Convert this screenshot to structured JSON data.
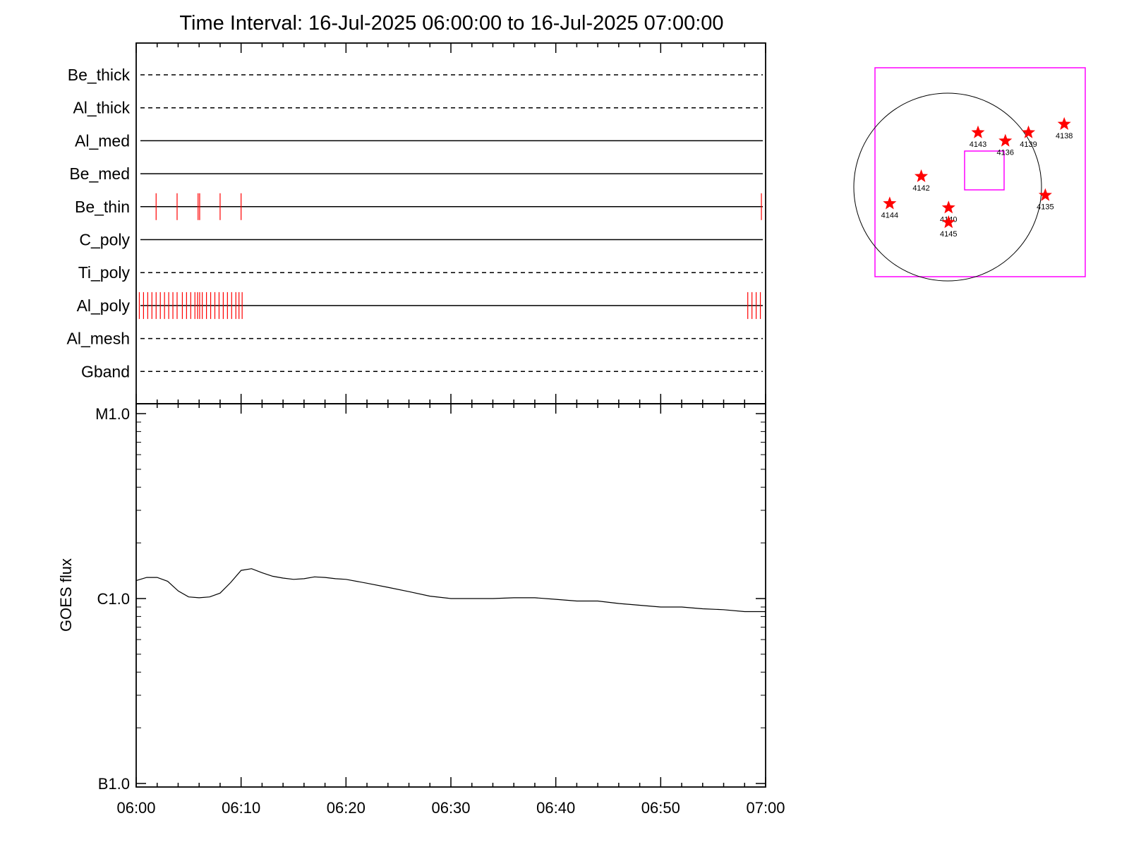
{
  "chart_data": [
    {
      "type": "line",
      "title": "Time Interval: 16-Jul-2025 06:00:00 to 16-Jul-2025 07:00:00",
      "xlabel": "",
      "ylabel": "",
      "xlim": [
        "06:00",
        "07:00"
      ],
      "x_tick_labels": [
        "06:00",
        "06:10",
        "06:20",
        "06:30",
        "06:40",
        "06:50",
        "07:00"
      ],
      "grid": false,
      "channels": [
        {
          "name": "Be_thick",
          "line_style": "dashed",
          "event_minutes": []
        },
        {
          "name": "Al_thick",
          "line_style": "dashed",
          "event_minutes": []
        },
        {
          "name": "Al_med",
          "line_style": "solid",
          "event_minutes": []
        },
        {
          "name": "Be_med",
          "line_style": "solid",
          "event_minutes": []
        },
        {
          "name": "Be_thin",
          "line_style": "solid",
          "event_minutes": [
            1.9,
            3.9,
            5.9,
            6.05,
            8.0,
            10.0,
            59.6
          ]
        },
        {
          "name": "C_poly",
          "line_style": "solid",
          "event_minutes": []
        },
        {
          "name": "Ti_poly",
          "line_style": "dashed",
          "event_minutes": []
        },
        {
          "name": "Al_poly",
          "line_style": "solid",
          "event_minutes": [
            0.3,
            0.7,
            1.1,
            1.5,
            1.9,
            2.3,
            2.7,
            3.1,
            3.5,
            3.9,
            4.4,
            4.8,
            5.2,
            5.6,
            5.85,
            6.05,
            6.3,
            6.7,
            7.1,
            7.5,
            7.9,
            8.3,
            8.7,
            9.1,
            9.5,
            9.8,
            10.1,
            58.3,
            58.7,
            59.1,
            59.5
          ]
        },
        {
          "name": "Al_mesh",
          "line_style": "dashed",
          "event_minutes": []
        },
        {
          "name": "Gband",
          "line_style": "dashed",
          "event_minutes": []
        }
      ],
      "colors": {
        "events": "#ff0000",
        "lines": "#000000"
      }
    },
    {
      "type": "line",
      "title": "",
      "xlabel": "",
      "ylabel": "GOES flux",
      "y_scale": "log",
      "ylim": [
        1e-07,
        1e-05
      ],
      "y_tick_labels": [
        {
          "value": 1e-05,
          "label": "M1.0"
        },
        {
          "value": 1e-06,
          "label": "C1.0"
        },
        {
          "value": 1e-07,
          "label": "B1.0"
        }
      ],
      "xlim": [
        "06:00",
        "07:00"
      ],
      "x_tick_labels": [
        "06:00",
        "06:10",
        "06:20",
        "06:30",
        "06:40",
        "06:50",
        "07:00"
      ],
      "grid": false,
      "series": [
        {
          "x_minutes": [
            0,
            1,
            2,
            3,
            4,
            5,
            6,
            7,
            8,
            9,
            10,
            11,
            12,
            13,
            14,
            15,
            16,
            17,
            18,
            19,
            20,
            22,
            24,
            26,
            28,
            30,
            32,
            34,
            36,
            38,
            40,
            42,
            44,
            46,
            48,
            50,
            52,
            54,
            56,
            58,
            60
          ],
          "y": [
            1.25e-06,
            1.3e-06,
            1.3e-06,
            1.24e-06,
            1.1e-06,
            1.02e-06,
            1.01e-06,
            1.02e-06,
            1.07e-06,
            1.22e-06,
            1.42e-06,
            1.45e-06,
            1.38e-06,
            1.32e-06,
            1.29e-06,
            1.27e-06,
            1.28e-06,
            1.31e-06,
            1.3e-06,
            1.28e-06,
            1.27e-06,
            1.21e-06,
            1.15e-06,
            1.09e-06,
            1.03e-06,
            1e-06,
            1e-06,
            1e-06,
            1.01e-06,
            1.01e-06,
            9.9e-07,
            9.7e-07,
            9.7e-07,
            9.4e-07,
            9.2e-07,
            9e-07,
            9e-07,
            8.8e-07,
            8.7e-07,
            8.5e-07,
            8.5e-07
          ]
        }
      ]
    },
    {
      "type": "scatter",
      "title": "",
      "xlabel": "",
      "ylabel": "",
      "regions": [
        {
          "label": "4143",
          "x": 0.49,
          "y": 0.31
        },
        {
          "label": "4136",
          "x": 0.62,
          "y": 0.35
        },
        {
          "label": "4139",
          "x": 0.73,
          "y": 0.31
        },
        {
          "label": "4138",
          "x": 0.9,
          "y": 0.27
        },
        {
          "label": "4142",
          "x": 0.22,
          "y": 0.52
        },
        {
          "label": "4144",
          "x": 0.07,
          "y": 0.65
        },
        {
          "label": "4140",
          "x": 0.35,
          "y": 0.67
        },
        {
          "label": "4145",
          "x": 0.35,
          "y": 0.74
        },
        {
          "label": "4135",
          "x": 0.81,
          "y": 0.61
        }
      ],
      "colors": {
        "markers": "#ff0000",
        "box": "#ff00ff",
        "limb": "#000000"
      }
    }
  ]
}
